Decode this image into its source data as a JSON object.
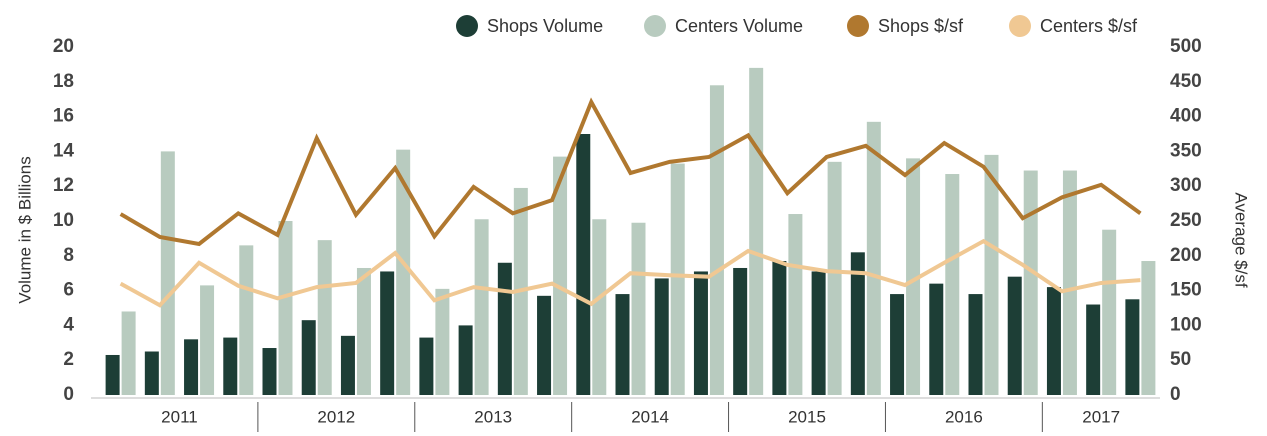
{
  "chart_data": {
    "type": "bar_line",
    "y_label": "Volume in $ Billions",
    "y2_label": "Average $/sf",
    "categories": [
      null,
      null,
      null,
      null,
      null,
      null,
      null,
      null,
      null,
      null,
      null,
      null,
      null,
      null,
      null,
      null,
      null,
      null,
      null,
      null,
      null,
      null,
      null,
      null,
      null,
      null,
      null
    ],
    "year_labels": [
      "2011",
      "2012",
      "2013",
      "2014",
      "2015",
      "2016",
      "2017"
    ],
    "series": [
      {
        "name": "Shops Volume",
        "kind": "bar",
        "color": "#1d3e36",
        "values": [
          2.3,
          2.5,
          3.2,
          3.3,
          2.7,
          4.3,
          3.4,
          7.1,
          3.3,
          4.0,
          7.6,
          5.7,
          15.0,
          5.8,
          6.7,
          7.1,
          7.3,
          7.7,
          7.1,
          8.2,
          5.8,
          6.4,
          5.8,
          6.8,
          6.2,
          5.2,
          5.5
        ]
      },
      {
        "name": "Centers Volume",
        "kind": "bar",
        "color": "#b8cbbf",
        "values": [
          4.8,
          14.0,
          6.3,
          8.6,
          10.0,
          8.9,
          7.3,
          14.1,
          6.1,
          10.1,
          11.9,
          13.7,
          10.1,
          9.9,
          13.3,
          17.8,
          18.8,
          10.4,
          13.4,
          15.7,
          13.6,
          12.7,
          13.8,
          12.9,
          12.9,
          9.5,
          7.7
        ]
      },
      {
        "name": "Shops $/sf",
        "kind": "line",
        "axis": "y2",
        "color": "#b0782f",
        "values": [
          260,
          227,
          217,
          261,
          230,
          369,
          259,
          326,
          228,
          299,
          261,
          280,
          421,
          319,
          335,
          342,
          373,
          290,
          342,
          358,
          316,
          362,
          328,
          254,
          284,
          302,
          261
        ]
      },
      {
        "name": "Centers $/sf",
        "kind": "line",
        "axis": "y2",
        "color": "#f0c893",
        "values": [
          160,
          129,
          190,
          157,
          139,
          155,
          161,
          204,
          136,
          155,
          148,
          160,
          131,
          175,
          172,
          170,
          207,
          187,
          178,
          175,
          158,
          190,
          221,
          187,
          149,
          161,
          165
        ]
      }
    ],
    "ylim": [
      0,
      20
    ],
    "yticks": [
      0,
      2,
      4,
      6,
      8,
      10,
      12,
      14,
      16,
      18,
      20
    ],
    "y2lim": [
      0,
      500
    ],
    "y2ticks": [
      0,
      50,
      100,
      150,
      200,
      250,
      300,
      350,
      400,
      450,
      500
    ],
    "grid": false
  }
}
